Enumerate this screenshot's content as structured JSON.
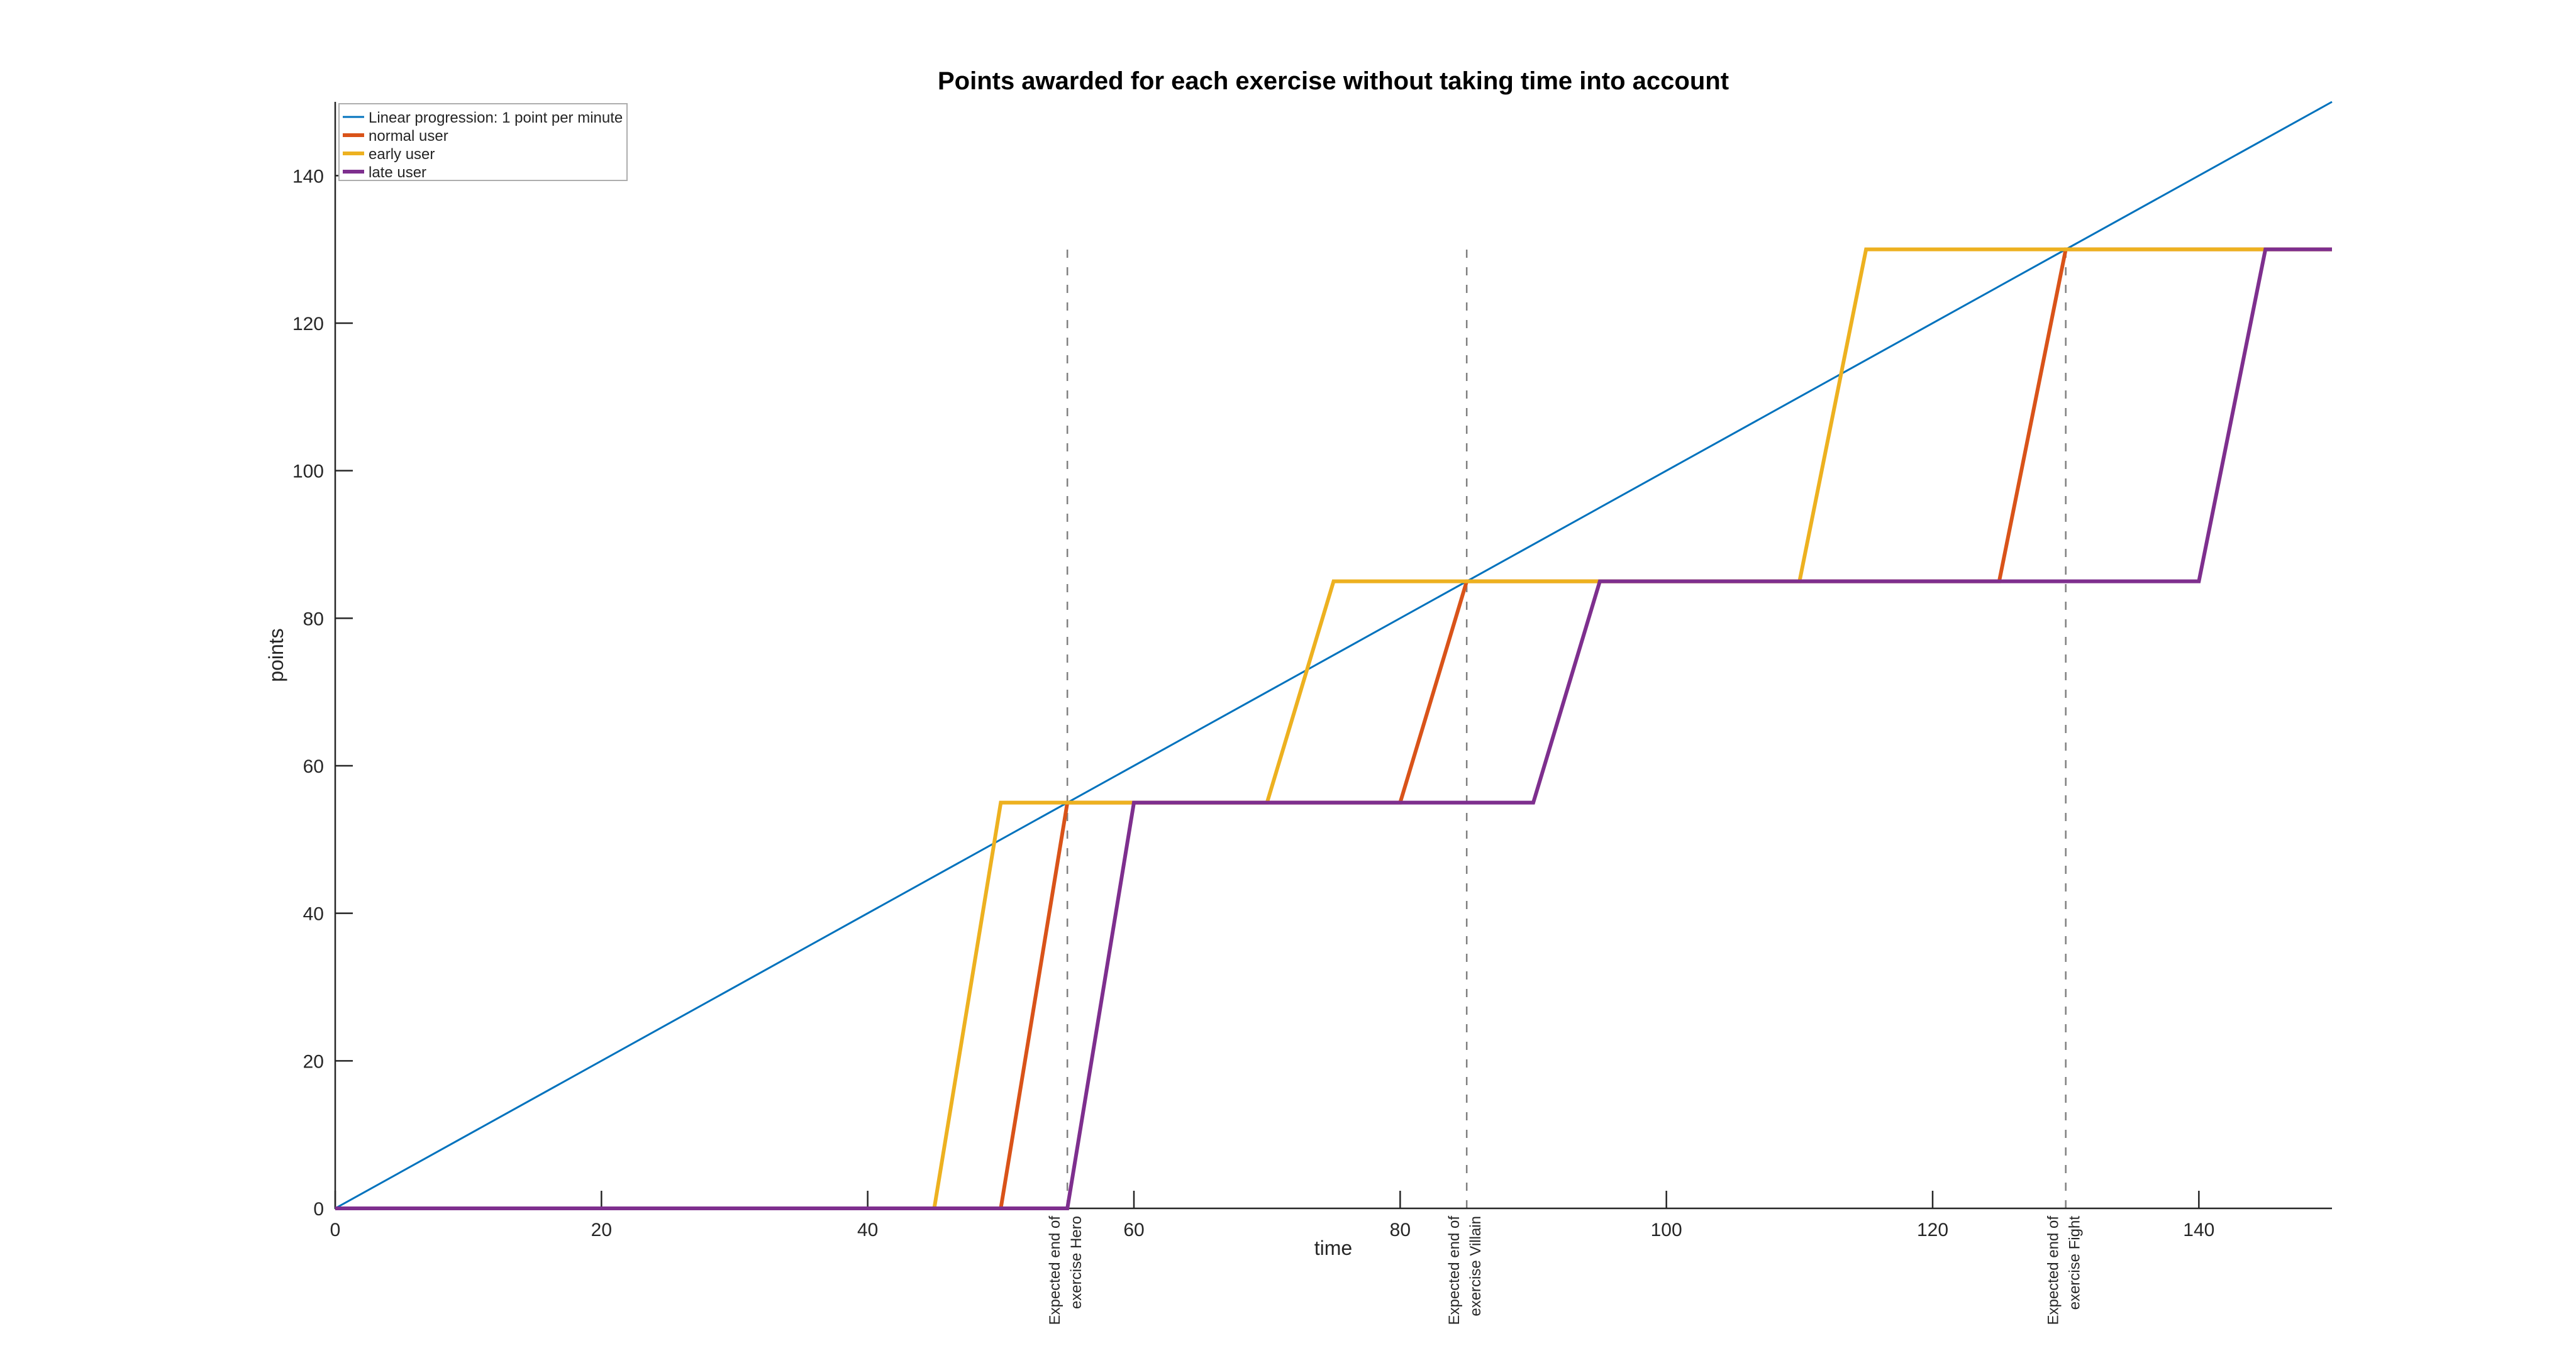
{
  "figure": {
    "background": "#ffffff"
  },
  "colors": {
    "axis": "#262626",
    "tick_text": "#262626",
    "vline_dash": "#808080",
    "legend_border": "#adadad",
    "legend_background": "#ffffff",
    "title_text": "#000000"
  },
  "chart_data": {
    "type": "line",
    "title": "Points awarded for each exercise without taking time into account",
    "xlabel": "time",
    "ylabel": "points",
    "xlim": [
      0,
      150
    ],
    "ylim": [
      0,
      150
    ],
    "xticks": [
      0,
      20,
      40,
      60,
      80,
      100,
      120,
      140
    ],
    "yticks": [
      0,
      20,
      40,
      60,
      80,
      100,
      120,
      140
    ],
    "grid": false,
    "legend_position": "northwest",
    "series": [
      {
        "name": "Linear progression: 1 point per minute",
        "color": "#0072BD",
        "line_width": 3,
        "points": [
          [
            0,
            0
          ],
          [
            150,
            150
          ]
        ]
      },
      {
        "name": "normal user",
        "color": "#D95319",
        "line_width": 6,
        "points": [
          [
            0,
            0
          ],
          [
            50,
            0
          ],
          [
            55,
            55
          ],
          [
            80,
            55
          ],
          [
            85,
            85
          ],
          [
            125,
            85
          ],
          [
            130,
            130
          ],
          [
            150,
            130
          ]
        ]
      },
      {
        "name": "early user",
        "color": "#EDB120",
        "line_width": 6,
        "points": [
          [
            0,
            0
          ],
          [
            45,
            0
          ],
          [
            50,
            55
          ],
          [
            70,
            55
          ],
          [
            75,
            85
          ],
          [
            110,
            85
          ],
          [
            115,
            130
          ],
          [
            150,
            130
          ]
        ]
      },
      {
        "name": "late user",
        "color": "#7E2F8E",
        "line_width": 6,
        "points": [
          [
            0,
            0
          ],
          [
            55,
            0
          ],
          [
            60,
            55
          ],
          [
            90,
            55
          ],
          [
            95,
            85
          ],
          [
            140,
            85
          ],
          [
            145,
            130
          ],
          [
            150,
            130
          ]
        ]
      }
    ],
    "vlines": [
      {
        "x": 55,
        "y0": 0,
        "y1": 130,
        "label_line1": "Expected end of",
        "label_line2": "exercise Hero"
      },
      {
        "x": 85,
        "y0": 0,
        "y1": 130,
        "label_line1": "Expected end of",
        "label_line2": "exercise Villain"
      },
      {
        "x": 130,
        "y0": 0,
        "y1": 130,
        "label_line1": "Expected end of",
        "label_line2": "exercise Fight"
      }
    ]
  }
}
